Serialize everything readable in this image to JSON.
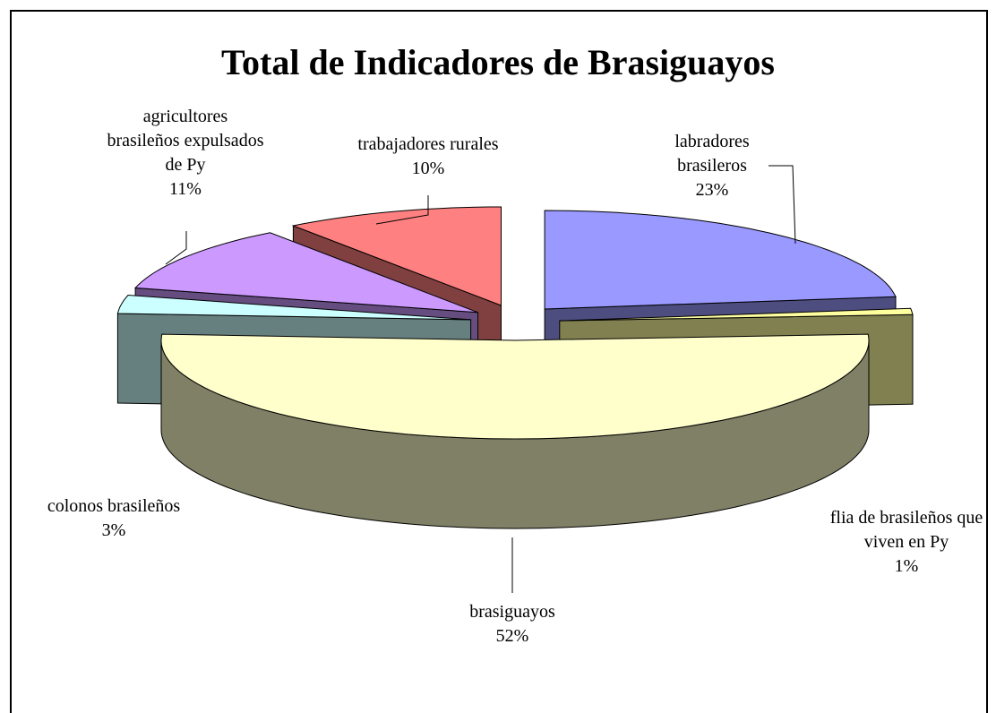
{
  "chart_data": {
    "type": "pie",
    "title": "Total de Indicadores de Brasiguayos",
    "categories": [
      "labradores brasileros",
      "flia de brasileños que viven en Py",
      "brasiguayos",
      "colonos brasileños",
      "agricultores brasileños expulsados de Py",
      "trabajadores rurales"
    ],
    "values": [
      23,
      1,
      52,
      3,
      11,
      10
    ],
    "value_labels": [
      "23%",
      "1%",
      "52%",
      "3%",
      "11%",
      "10%"
    ],
    "colors": [
      "#9999ff",
      "#ffffa0",
      "#ffffcc",
      "#ccffff",
      "#cc99ff",
      "#ff8080"
    ]
  }
}
